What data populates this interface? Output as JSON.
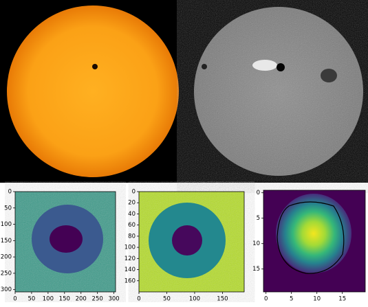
{
  "chart_data": [
    {
      "type": "image",
      "xlim": [
        0,
        305
      ],
      "ylim": [
        0,
        307
      ],
      "xticks": [
        0,
        50,
        100,
        150,
        200,
        250,
        300
      ],
      "yticks": [
        0,
        50,
        100,
        150,
        200,
        250,
        300
      ]
    },
    {
      "type": "image",
      "xlim": [
        0,
        189
      ],
      "ylim": [
        0,
        180
      ],
      "xticks": [
        0,
        50,
        100,
        150
      ],
      "yticks": [
        0,
        20,
        40,
        60,
        80,
        100,
        120,
        140,
        160
      ]
    },
    {
      "type": "image",
      "xlim": [
        -0.5,
        19.5
      ],
      "ylim": [
        -0.5,
        19.5
      ],
      "xticks": [
        0,
        5,
        10,
        15
      ],
      "yticks": [
        0,
        5,
        10,
        15
      ]
    }
  ]
}
